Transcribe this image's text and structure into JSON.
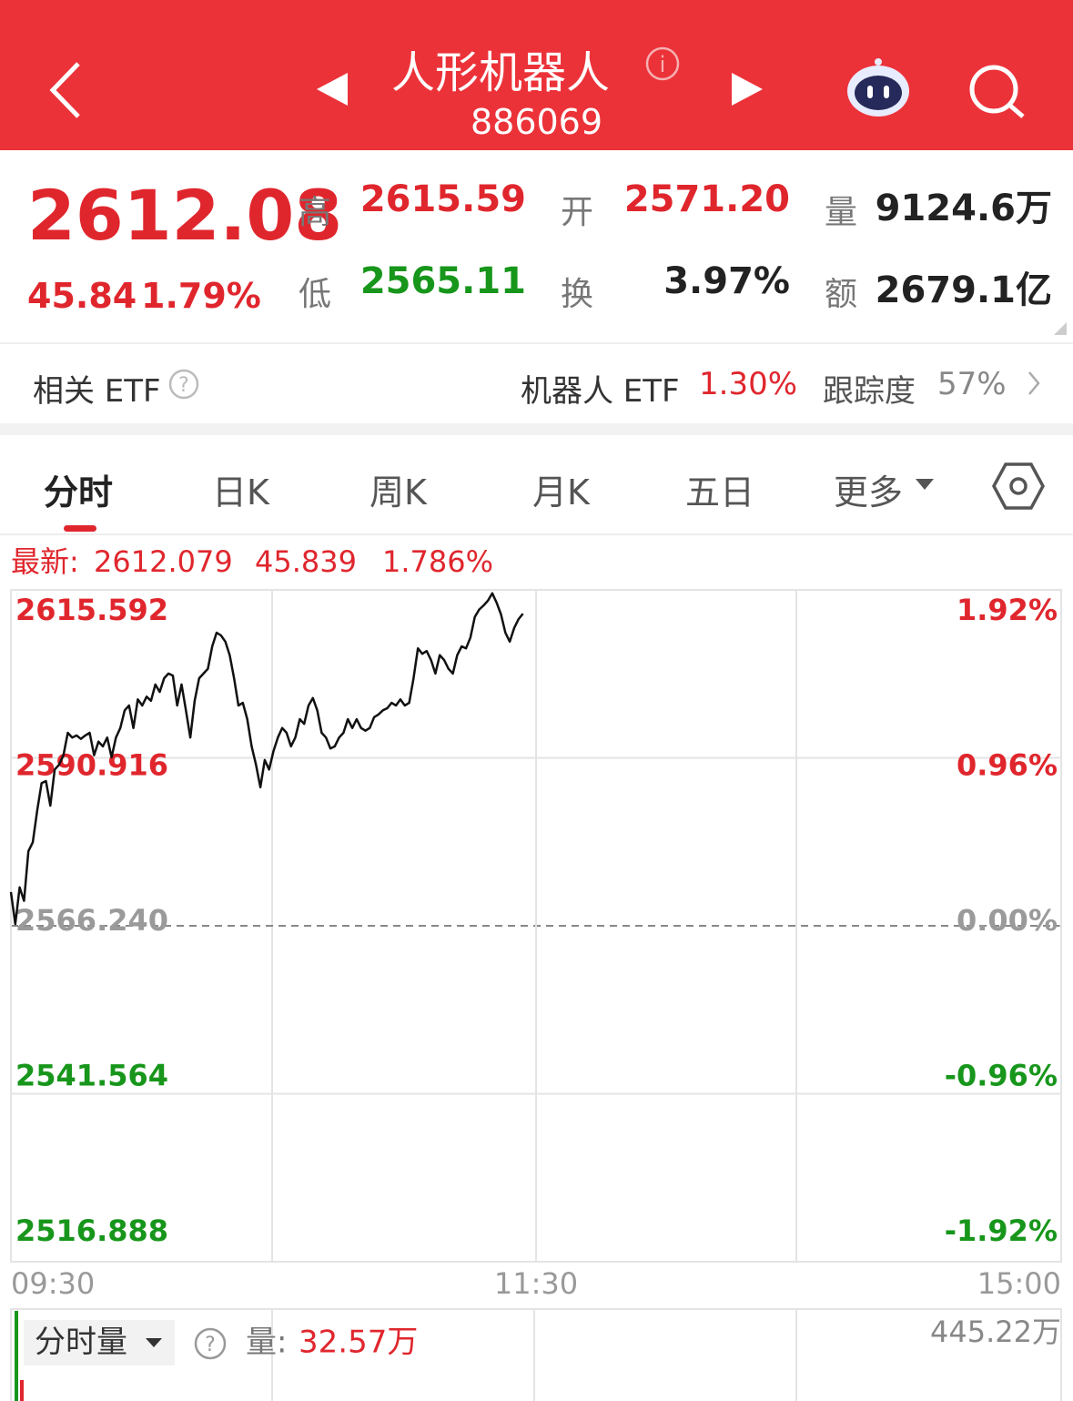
{
  "header": {
    "title": "人形机器人",
    "code": "886069"
  },
  "quote": {
    "price": "2612.08",
    "change": "45.84",
    "change_pct": "1.79%",
    "stats": [
      {
        "label": "高",
        "value": "2615.59"
      },
      {
        "label": "开",
        "value": "2571.20"
      },
      {
        "label": "量",
        "value": "9124.6万"
      },
      {
        "label": "低",
        "value": "2565.11"
      },
      {
        "label": "换",
        "value": "3.97%"
      },
      {
        "label": "额",
        "value": "2679.1亿"
      }
    ]
  },
  "etf": {
    "label": "相关 ETF",
    "name": "机器人 ETF",
    "change": "1.30%",
    "tracking_label": "跟踪度",
    "tracking": "57%"
  },
  "tabs": [
    "分时",
    "日K",
    "周K",
    "月K",
    "五日",
    "更多"
  ],
  "chart_data": {
    "type": "line",
    "latest_label": "最新:",
    "latest": [
      "2612.079",
      "45.839",
      "1.786%"
    ],
    "color": "#111111",
    "up_color": "#e0262d",
    "down_color": "#17961b",
    "flat_color": "#9a9a9a",
    "grid": true,
    "x": [
      0,
      1,
      2,
      3,
      4,
      5,
      6,
      7,
      8,
      9,
      10,
      11,
      12,
      13,
      14,
      15,
      16,
      17,
      18,
      19,
      20,
      21,
      22,
      23,
      24,
      25,
      26,
      27,
      28,
      29,
      30,
      31,
      32,
      33,
      34,
      35,
      36,
      37,
      38,
      39,
      40,
      41,
      42,
      43,
      44,
      45,
      46,
      47,
      48,
      49,
      50,
      51,
      52,
      53,
      54,
      55,
      56,
      57,
      58,
      59,
      60,
      61,
      62,
      63,
      64,
      65,
      66,
      67,
      68,
      69,
      70,
      71,
      72,
      73,
      74,
      75,
      76,
      77,
      78,
      79,
      80,
      81,
      82,
      83,
      84,
      85,
      86,
      87,
      88,
      89,
      90,
      91,
      92,
      93,
      94,
      95,
      96,
      97,
      98,
      99,
      100,
      101,
      102,
      103,
      104,
      105,
      106,
      107,
      108,
      109,
      110,
      111,
      112,
      113,
      114,
      115,
      116,
      117
    ],
    "values": [
      2571.2,
      2566.5,
      2571.9,
      2569.9,
      2577.2,
      2578.5,
      2583.2,
      2587.2,
      2587.5,
      2583.9,
      2589.2,
      2589.9,
      2591.3,
      2594.6,
      2593.9,
      2594.2,
      2593.7,
      2594.2,
      2594.6,
      2591.3,
      2593.3,
      2592.6,
      2593.9,
      2591.0,
      2593.9,
      2595.3,
      2597.9,
      2598.6,
      2595.3,
      2599.5,
      2598.6,
      2599.9,
      2599.3,
      2601.7,
      2600.6,
      2602.6,
      2603.3,
      2603.0,
      2598.6,
      2601.7,
      2597.9,
      2593.9,
      2599.3,
      2602.6,
      2603.3,
      2604.0,
      2607.3,
      2609.3,
      2608.9,
      2608.0,
      2606.0,
      2602.6,
      2598.6,
      2599.0,
      2596.6,
      2592.6,
      2589.9,
      2586.6,
      2590.6,
      2589.2,
      2591.9,
      2593.9,
      2595.3,
      2594.6,
      2592.6,
      2593.9,
      2596.6,
      2595.9,
      2598.6,
      2599.7,
      2597.9,
      2594.6,
      2593.9,
      2592.3,
      2592.6,
      2593.9,
      2594.6,
      2596.6,
      2595.3,
      2596.6,
      2595.3,
      2594.9,
      2595.3,
      2596.9,
      2597.3,
      2597.9,
      2598.2,
      2599.0,
      2598.6,
      2599.5,
      2598.6,
      2599.0,
      2602.6,
      2607.0,
      2606.2,
      2606.6,
      2605.3,
      2603.3,
      2606.0,
      2605.3,
      2604.0,
      2603.3,
      2606.0,
      2607.3,
      2607.0,
      2608.6,
      2611.6,
      2612.7,
      2613.3,
      2614.0,
      2615.1,
      2613.7,
      2612.0,
      2609.3,
      2608.0,
      2610.0,
      2611.3,
      2612.1
    ],
    "xlim": [
      0,
      240
    ],
    "xticks": [
      {
        "value": 0,
        "label": "09:30"
      },
      {
        "value": 120,
        "label": "11:30"
      },
      {
        "value": 240,
        "label": "15:00"
      }
    ],
    "ylim": [
      2516.888,
      2615.592
    ],
    "yticks": [
      {
        "value": 2615.592,
        "label": "2615.592"
      },
      {
        "value": 2590.916,
        "label": "2590.916"
      },
      {
        "value": 2566.24,
        "label": "2566.240"
      },
      {
        "value": 2541.564,
        "label": "2541.564"
      },
      {
        "value": 2516.888,
        "label": "2516.888"
      }
    ],
    "y2lim": [
      -1.92,
      1.92
    ],
    "y2ticks": [
      {
        "value": 1.92,
        "label": "1.92%"
      },
      {
        "value": 0.96,
        "label": "0.96%"
      },
      {
        "value": 0,
        "label": "0.00%"
      },
      {
        "value": -0.96,
        "label": "-0.96%"
      },
      {
        "value": -1.92,
        "label": "-1.92%"
      }
    ]
  },
  "volume": {
    "label": "分时量",
    "qty_label": "量:",
    "qty": "32.57万",
    "max": "445.22万"
  }
}
